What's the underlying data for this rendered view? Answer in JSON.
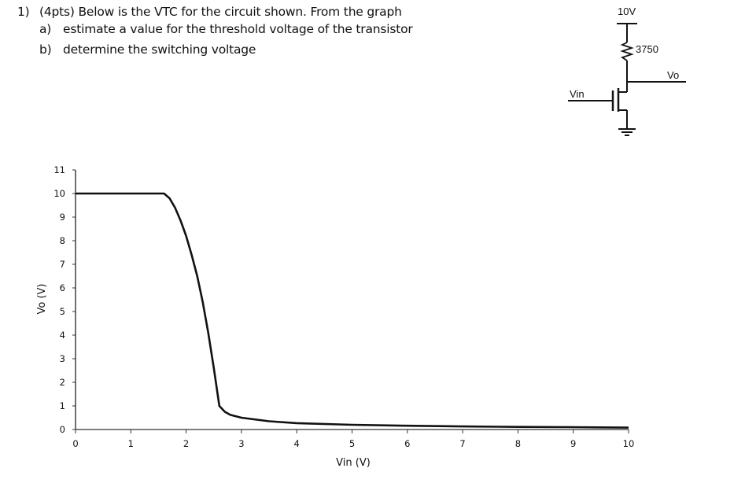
{
  "question": {
    "number": "1)",
    "main": "(4pts) Below is the VTC for the circuit shown.  From the graph",
    "parts": [
      {
        "label": "a)",
        "text": "estimate a value for the threshold voltage of the transistor"
      },
      {
        "label": "b)",
        "text": "determine the switching voltage"
      }
    ]
  },
  "circuit": {
    "supply_label": "10V",
    "resistor_label": "3750",
    "output_label": "Vo",
    "input_label": "Vin",
    "components": [
      "voltage-supply",
      "resistor",
      "nmos-transistor",
      "ground"
    ]
  },
  "chart_data": {
    "type": "line",
    "title": "",
    "xlabel": "Vin (V)",
    "ylabel": "Vo (V)",
    "xlim": [
      0,
      10
    ],
    "ylim": [
      0,
      11
    ],
    "xticks": [
      "0",
      "1",
      "2",
      "3",
      "4",
      "5",
      "6",
      "7",
      "8",
      "9",
      "10"
    ],
    "yticks": [
      "0",
      "1",
      "2",
      "3",
      "4",
      "5",
      "6",
      "7",
      "8",
      "9",
      "10",
      "11"
    ],
    "grid": false,
    "legend": null,
    "series": [
      {
        "name": "VTC",
        "x": [
          0,
          0.5,
          1.0,
          1.5,
          1.6,
          1.7,
          1.8,
          1.9,
          2.0,
          2.1,
          2.2,
          2.3,
          2.4,
          2.5,
          2.6,
          2.7,
          2.8,
          3.0,
          3.5,
          4.0,
          5.0,
          6.0,
          7.0,
          8.0,
          9.0,
          10.0
        ],
        "y": [
          10,
          10,
          10,
          10,
          10,
          9.8,
          9.4,
          8.85,
          8.2,
          7.4,
          6.5,
          5.4,
          4.1,
          2.6,
          1.0,
          0.75,
          0.62,
          0.5,
          0.35,
          0.27,
          0.2,
          0.16,
          0.13,
          0.11,
          0.1,
          0.08
        ]
      }
    ],
    "annotations": []
  }
}
